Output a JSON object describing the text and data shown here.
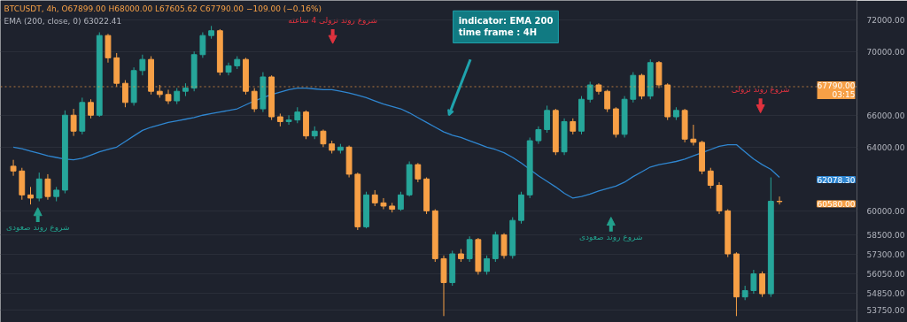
{
  "chart_data": {
    "type": "candlestick",
    "title": "BTCUSDT, 4h, O67899.00 H68000.00 L67605.62 C67790.00 −109.00 (−0.16%)",
    "subtitle": "EMA (200, close, 0) 63022.41",
    "categories": [
      null,
      null,
      null,
      null,
      null,
      null,
      null,
      null,
      null,
      null,
      null,
      null,
      null,
      null,
      null,
      null,
      null,
      null,
      null,
      null,
      null,
      null,
      null,
      null,
      null,
      null,
      null,
      null,
      null,
      null,
      null,
      null,
      null,
      null,
      null,
      null,
      null,
      null,
      null,
      null,
      null,
      null,
      null,
      null,
      null,
      null,
      null,
      null,
      null,
      null,
      null,
      null,
      null,
      null,
      null,
      null,
      null,
      null,
      null,
      null,
      null,
      null,
      null,
      null,
      null,
      null,
      null,
      null,
      null,
      null,
      null,
      null,
      null,
      null,
      null,
      null,
      null,
      null,
      null,
      null,
      null,
      null,
      null,
      null,
      null,
      null,
      null,
      null,
      null,
      null
    ],
    "ohlc": [
      [
        62800,
        63200,
        62200,
        62500
      ],
      [
        62500,
        62700,
        60700,
        61000
      ],
      [
        61000,
        61500,
        60400,
        60800
      ],
      [
        60800,
        62400,
        60600,
        62000
      ],
      [
        62000,
        62300,
        60700,
        60900
      ],
      [
        60900,
        61500,
        60600,
        61300
      ],
      [
        61300,
        66300,
        61100,
        66000
      ],
      [
        66000,
        66400,
        64700,
        65000
      ],
      [
        65000,
        67100,
        64800,
        66800
      ],
      [
        66800,
        67000,
        65800,
        66000
      ],
      [
        66000,
        71200,
        65900,
        71000
      ],
      [
        71000,
        71100,
        69300,
        69600
      ],
      [
        69600,
        69900,
        67800,
        68000
      ],
      [
        68000,
        68200,
        66500,
        66800
      ],
      [
        66800,
        69000,
        66600,
        68800
      ],
      [
        68800,
        69800,
        68500,
        69500
      ],
      [
        69500,
        69700,
        67300,
        67500
      ],
      [
        67500,
        67900,
        67100,
        67300
      ],
      [
        67300,
        67600,
        66700,
        66900
      ],
      [
        66900,
        67700,
        66700,
        67500
      ],
      [
        67500,
        68000,
        67200,
        67700
      ],
      [
        67700,
        70000,
        67500,
        69800
      ],
      [
        69800,
        71200,
        69600,
        71000
      ],
      [
        71000,
        71600,
        70800,
        71300
      ],
      [
        71300,
        71400,
        68500,
        68700
      ],
      [
        68700,
        69300,
        68500,
        69100
      ],
      [
        69100,
        69700,
        68900,
        69500
      ],
      [
        69500,
        69600,
        67300,
        67500
      ],
      [
        67500,
        67700,
        66200,
        66400
      ],
      [
        66400,
        68700,
        66200,
        68400
      ],
      [
        68400,
        68500,
        65700,
        65900
      ],
      [
        65900,
        66100,
        65300,
        65600
      ],
      [
        65600,
        66000,
        65400,
        65700
      ],
      [
        65700,
        66500,
        65500,
        66200
      ],
      [
        66200,
        66300,
        64500,
        64700
      ],
      [
        64700,
        65300,
        64500,
        65000
      ],
      [
        65000,
        65100,
        64000,
        64200
      ],
      [
        64200,
        64400,
        63600,
        63800
      ],
      [
        63800,
        64200,
        63600,
        64000
      ],
      [
        64000,
        64100,
        62100,
        62300
      ],
      [
        62300,
        62400,
        58800,
        59000
      ],
      [
        59000,
        61200,
        58900,
        61000
      ],
      [
        61000,
        61300,
        60300,
        60500
      ],
      [
        60500,
        60800,
        60100,
        60300
      ],
      [
        60300,
        60500,
        59900,
        60100
      ],
      [
        60100,
        61200,
        60000,
        61000
      ],
      [
        61000,
        63100,
        60900,
        62900
      ],
      [
        62900,
        63000,
        61800,
        62000
      ],
      [
        62000,
        62100,
        59800,
        60000
      ],
      [
        60000,
        60100,
        56800,
        57000
      ],
      [
        57000,
        57200,
        53400,
        55500
      ],
      [
        55500,
        57500,
        55300,
        57300
      ],
      [
        57300,
        57600,
        56800,
        57000
      ],
      [
        57000,
        58400,
        56800,
        58200
      ],
      [
        58200,
        58300,
        56000,
        56200
      ],
      [
        56200,
        57200,
        56000,
        57000
      ],
      [
        57000,
        58700,
        56800,
        58500
      ],
      [
        58500,
        58600,
        57000,
        57200
      ],
      [
        57200,
        59600,
        57000,
        59400
      ],
      [
        59400,
        61200,
        59200,
        61000
      ],
      [
        61000,
        64600,
        60800,
        64400
      ],
      [
        64400,
        65300,
        64200,
        65100
      ],
      [
        65100,
        66600,
        64900,
        66300
      ],
      [
        66300,
        66400,
        63500,
        63700
      ],
      [
        63700,
        65800,
        63500,
        65600
      ],
      [
        65600,
        65800,
        64800,
        65000
      ],
      [
        65000,
        67200,
        64800,
        67000
      ],
      [
        67000,
        68100,
        66800,
        67900
      ],
      [
        67900,
        68000,
        67300,
        67500
      ],
      [
        67500,
        67600,
        66200,
        66400
      ],
      [
        66400,
        66500,
        64600,
        64800
      ],
      [
        64800,
        67200,
        64600,
        67000
      ],
      [
        67000,
        68700,
        66800,
        68500
      ],
      [
        68500,
        68600,
        67000,
        67200
      ],
      [
        67200,
        69500,
        67000,
        69300
      ],
      [
        69300,
        69400,
        67700,
        67900
      ],
      [
        67900,
        68000,
        65700,
        65900
      ],
      [
        65900,
        66500,
        65700,
        66300
      ],
      [
        66300,
        66400,
        64300,
        64500
      ],
      [
        64500,
        65400,
        64100,
        64300
      ],
      [
        64300,
        64400,
        62300,
        62500
      ],
      [
        62500,
        62700,
        61400,
        61600
      ],
      [
        61600,
        61800,
        59800,
        60000
      ],
      [
        60000,
        60100,
        57100,
        57300
      ],
      [
        57300,
        57400,
        53400,
        54600
      ],
      [
        54600,
        55300,
        54400,
        55000
      ],
      [
        55000,
        56300,
        54800,
        56050
      ],
      [
        56050,
        56200,
        54600,
        54800
      ],
      [
        54800,
        62100,
        54600,
        60600
      ],
      [
        60600,
        60900,
        60400,
        60580
      ]
    ],
    "colors": [
      "#f7a046",
      "#f7a046",
      "#f7a046",
      "#26a69a",
      "#f7a046",
      "#26a69a",
      "#26a69a",
      "#f7a046",
      "#26a69a",
      "#f7a046",
      "#26a69a",
      "#f7a046",
      "#f7a046",
      "#f7a046",
      "#26a69a",
      "#26a69a",
      "#f7a046",
      "#f7a046",
      "#f7a046",
      "#26a69a",
      "#26a69a",
      "#26a69a",
      "#26a69a",
      "#26a69a",
      "#f7a046",
      "#26a69a",
      "#26a69a",
      "#f7a046",
      "#f7a046",
      "#26a69a",
      "#f7a046",
      "#f7a046",
      "#26a69a",
      "#26a69a",
      "#f7a046",
      "#26a69a",
      "#f7a046",
      "#f7a046",
      "#26a69a",
      "#f7a046",
      "#f7a046",
      "#26a69a",
      "#f7a046",
      "#f7a046",
      "#f7a046",
      "#26a69a",
      "#26a69a",
      "#f7a046",
      "#f7a046",
      "#f7a046",
      "#f7a046",
      "#26a69a",
      "#f7a046",
      "#26a69a",
      "#f7a046",
      "#26a69a",
      "#26a69a",
      "#f7a046",
      "#26a69a",
      "#26a69a",
      "#26a69a",
      "#26a69a",
      "#26a69a",
      "#f7a046",
      "#26a69a",
      "#f7a046",
      "#26a69a",
      "#26a69a",
      "#f7a046",
      "#f7a046",
      "#f7a046",
      "#26a69a",
      "#26a69a",
      "#f7a046",
      "#26a69a",
      "#f7a046",
      "#f7a046",
      "#26a69a",
      "#f7a046",
      "#f7a046",
      "#f7a046",
      "#f7a046",
      "#f7a046",
      "#f7a046",
      "#f7a046",
      "#26a69a",
      "#26a69a",
      "#f7a046",
      "#26a69a",
      "#f7a046"
    ],
    "series": [
      {
        "type": "line",
        "color": "#2f86d0",
        "values": [
          64000,
          63900,
          63750,
          63600,
          63450,
          63350,
          63250,
          63200,
          63300,
          63500,
          63700,
          63850,
          64000,
          64350,
          64700,
          65050,
          65250,
          65400,
          65550,
          65650,
          65750,
          65850,
          66000,
          66100,
          66200,
          66300,
          66400,
          66650,
          66900,
          67100,
          67300,
          67450,
          67600,
          67700,
          67700,
          67650,
          67600,
          67600,
          67500,
          67400,
          67250,
          67100,
          66900,
          66700,
          66550,
          66400,
          66150,
          65850,
          65550,
          65250,
          64950,
          64750,
          64600,
          64400,
          64200,
          64000,
          63850,
          63650,
          63350,
          63000,
          62600,
          62200,
          61850,
          61500,
          61100,
          60800,
          60900,
          61050,
          61250,
          61400,
          61550,
          61800,
          62150,
          62450,
          62750,
          62900,
          63000,
          63100,
          63250,
          63450,
          63650,
          63850,
          64050,
          64150,
          64150,
          63700,
          63250,
          62900,
          62600,
          62100
        ]
      }
    ],
    "ylim": [
      53000,
      73200
    ],
    "yticks": [
      {
        "value": 72000,
        "label": "72000.00"
      },
      {
        "value": 70000,
        "label": "70000.00"
      },
      {
        "value": 66000,
        "label": "66000.00"
      },
      {
        "value": 64000,
        "label": "64000.00"
      },
      {
        "value": 60000,
        "label": "60000.00"
      },
      {
        "value": 58500,
        "label": "58500.00"
      },
      {
        "value": 57300,
        "label": "57300.00"
      },
      {
        "value": 56050,
        "label": "56050.00"
      },
      {
        "value": 54850,
        "label": "54850.00"
      },
      {
        "value": 53750,
        "label": "53750.00"
      }
    ],
    "grid": "y",
    "tick_labels": "y",
    "ref_lines": [
      {
        "axis": "y",
        "value": 67790,
        "label": "67790.00\n03:15",
        "color": "#f7a046",
        "line_style": "dotted"
      }
    ],
    "annotations": [
      "شروع روند صعودی",
      "شروع روند نزولی 4 ساعته",
      "indicator: EMA 200\ntime frame : 4H",
      "شروع روند صعودی",
      "شروع روند نزولی",
      "62078.30",
      "60580.00"
    ]
  }
}
